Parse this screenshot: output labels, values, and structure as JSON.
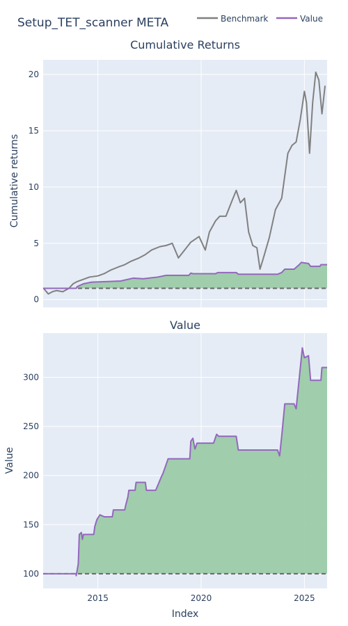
{
  "title": "Setup_TET_scanner META",
  "legend": {
    "placement": "top-right",
    "items": [
      {
        "label": "Benchmark",
        "color": "#808080"
      },
      {
        "label": "Value",
        "color": "#9467bd"
      }
    ]
  },
  "colors": {
    "plot_bg": "#e5ecf6",
    "grid": "#ffffff",
    "benchmark": "#808080",
    "value": "#9467bd",
    "fill": "#9ccba8",
    "baseline": "#666666"
  },
  "chart_data": [
    {
      "type": "line",
      "title": "Cumulative Returns",
      "xlabel": "",
      "ylabel": "Cumulative returns",
      "xlim": [
        2012.35,
        2026.1
      ],
      "ylim": [
        -0.7,
        21.3
      ],
      "x_ticks": [
        2015,
        2020,
        2025
      ],
      "x_tick_labels": [
        "",
        "",
        ""
      ],
      "y_ticks": [
        0,
        5,
        10,
        15,
        20
      ],
      "y_tick_labels": [
        "0",
        "5",
        "10",
        "15",
        "20"
      ],
      "grid": true,
      "baseline": 1.0,
      "series": [
        {
          "name": "Benchmark",
          "x": [
            2012.37,
            2012.6,
            2012.8,
            2013.0,
            2013.3,
            2013.6,
            2013.8,
            2014.0,
            2014.3,
            2014.6,
            2015.0,
            2015.3,
            2015.6,
            2016.0,
            2016.3,
            2016.6,
            2017.0,
            2017.3,
            2017.6,
            2018.0,
            2018.3,
            2018.6,
            2018.9,
            2019.2,
            2019.5,
            2019.9,
            2020.2,
            2020.4,
            2020.7,
            2020.9,
            2021.2,
            2021.5,
            2021.7,
            2021.9,
            2022.1,
            2022.3,
            2022.5,
            2022.7,
            2022.85,
            2023.0,
            2023.3,
            2023.6,
            2023.9,
            2024.2,
            2024.4,
            2024.6,
            2024.8,
            2025.0,
            2025.1,
            2025.25,
            2025.4,
            2025.55,
            2025.7,
            2025.85,
            2026.0
          ],
          "y": [
            1.0,
            0.5,
            0.7,
            0.8,
            0.7,
            1.0,
            1.4,
            1.6,
            1.8,
            2.0,
            2.1,
            2.3,
            2.6,
            2.9,
            3.1,
            3.4,
            3.7,
            4.0,
            4.4,
            4.7,
            4.8,
            5.0,
            3.7,
            4.4,
            5.1,
            5.6,
            4.4,
            6.0,
            7.0,
            7.4,
            7.4,
            8.8,
            9.7,
            8.6,
            9.0,
            6.0,
            4.8,
            4.6,
            2.7,
            3.6,
            5.5,
            8.0,
            9.0,
            13.0,
            13.7,
            14.0,
            16.0,
            18.5,
            17.5,
            13.0,
            17.5,
            20.2,
            19.5,
            16.5,
            19.0
          ]
        },
        {
          "name": "Value",
          "x": [
            2012.37,
            2013.95,
            2014.0,
            2014.3,
            2014.7,
            2015.5,
            2016.1,
            2016.7,
            2017.2,
            2017.9,
            2018.3,
            2019.4,
            2019.5,
            2019.6,
            2020.1,
            2020.7,
            2020.8,
            2021.7,
            2021.8,
            2023.7,
            2023.9,
            2024.05,
            2024.5,
            2024.75,
            2024.85,
            2025.2,
            2025.3,
            2025.75,
            2025.8,
            2026.1
          ],
          "y": [
            1.0,
            1.0,
            1.15,
            1.4,
            1.55,
            1.6,
            1.65,
            1.9,
            1.85,
            2.0,
            2.15,
            2.15,
            2.35,
            2.3,
            2.3,
            2.3,
            2.4,
            2.4,
            2.25,
            2.25,
            2.4,
            2.7,
            2.7,
            3.1,
            3.3,
            3.2,
            2.95,
            2.95,
            3.1,
            3.1
          ]
        }
      ]
    },
    {
      "type": "area",
      "title": "Value",
      "xlabel": "Index",
      "ylabel": "Value",
      "xlim": [
        2012.35,
        2026.1
      ],
      "ylim": [
        85,
        345
      ],
      "x_ticks": [
        2015,
        2020,
        2025
      ],
      "x_tick_labels": [
        "2015",
        "2020",
        "2025"
      ],
      "y_ticks": [
        100,
        150,
        200,
        250,
        300
      ],
      "y_tick_labels": [
        "100",
        "150",
        "200",
        "250",
        "300"
      ],
      "grid": true,
      "baseline": 100,
      "series": [
        {
          "name": "Value",
          "x": [
            2012.37,
            2013.95,
            2013.95,
            2014.05,
            2014.1,
            2014.2,
            2014.25,
            2014.3,
            2014.8,
            2014.85,
            2014.95,
            2015.1,
            2015.3,
            2015.7,
            2015.75,
            2016.3,
            2016.35,
            2016.45,
            2016.5,
            2016.8,
            2016.85,
            2017.3,
            2017.35,
            2017.8,
            2018.1,
            2018.15,
            2018.4,
            2019.45,
            2019.5,
            2019.6,
            2019.7,
            2019.8,
            2020.1,
            2020.6,
            2020.75,
            2020.85,
            2021.7,
            2021.8,
            2023.7,
            2023.8,
            2023.9,
            2024.05,
            2024.5,
            2024.6,
            2024.9,
            2025.0,
            2025.2,
            2025.3,
            2025.8,
            2025.85,
            2026.1
          ],
          "y": [
            100,
            100,
            98,
            110,
            140,
            142,
            135,
            140,
            140,
            148,
            155,
            160,
            158,
            158,
            165,
            165,
            170,
            178,
            185,
            185,
            193,
            193,
            185,
            185,
            200,
            202,
            217,
            217,
            235,
            238,
            227,
            233,
            233,
            233,
            242,
            240,
            240,
            226,
            226,
            220,
            240,
            273,
            273,
            268,
            330,
            320,
            322,
            297,
            297,
            310,
            310
          ]
        }
      ]
    }
  ]
}
